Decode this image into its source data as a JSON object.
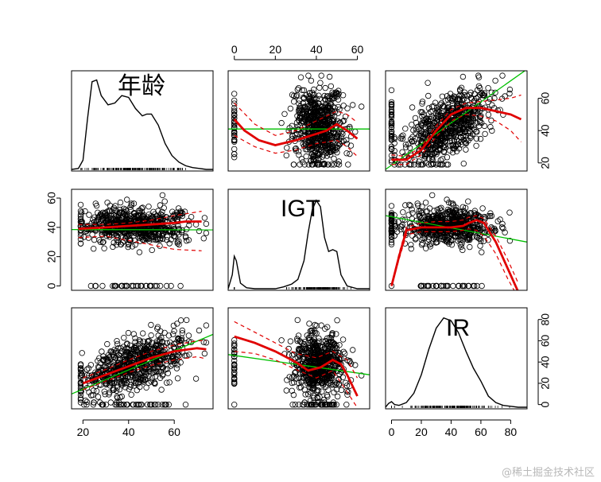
{
  "chart_data": {
    "type": "scatter",
    "kind": "scatterplot-matrix",
    "variables": [
      "年龄",
      "IGT",
      "IR"
    ],
    "diagonal": "density",
    "axis_ticks": {
      "年龄": [
        20,
        40,
        60
      ],
      "IGT": [
        0,
        20,
        40,
        60
      ],
      "IR": [
        0,
        20,
        40,
        60,
        80
      ]
    },
    "axis_ranges": {
      "年龄": [
        15,
        77
      ],
      "IGT": [
        -3,
        66
      ],
      "IR": [
        -4,
        91
      ]
    },
    "colors": {
      "points": "#000000",
      "smoother": "#e00000",
      "regression": "#00c000",
      "frame": "#000000"
    },
    "densities": {
      "年龄": {
        "x": [
          15,
          18,
          20,
          22,
          24,
          26,
          28,
          31,
          34,
          37,
          40,
          43,
          46,
          48,
          50,
          53,
          56,
          59,
          62,
          65,
          68,
          71,
          74,
          77
        ],
        "y": [
          0.0,
          0.01,
          0.1,
          0.55,
          0.95,
          0.97,
          0.8,
          0.7,
          0.72,
          0.8,
          0.78,
          0.66,
          0.58,
          0.6,
          0.6,
          0.48,
          0.28,
          0.15,
          0.08,
          0.04,
          0.02,
          0.01,
          0.0,
          0.0
        ]
      },
      "IGT": {
        "x": [
          -3,
          -1,
          0,
          1,
          3,
          6,
          10,
          15,
          20,
          24,
          28,
          31,
          34,
          36,
          38,
          40,
          42,
          44,
          46,
          48,
          50,
          52,
          55,
          60,
          66
        ],
        "y": [
          0.0,
          0.15,
          0.35,
          0.3,
          0.06,
          0.01,
          0.0,
          0.0,
          0.0,
          0.02,
          0.05,
          0.1,
          0.3,
          0.6,
          0.85,
          0.95,
          0.88,
          0.55,
          0.4,
          0.42,
          0.4,
          0.15,
          0.03,
          0.0,
          0.0
        ]
      },
      "IR": {
        "x": [
          -4,
          -2,
          0,
          2,
          5,
          10,
          15,
          20,
          25,
          30,
          35,
          40,
          45,
          50,
          55,
          60,
          65,
          70,
          75,
          80,
          85,
          91
        ],
        "y": [
          0.0,
          0.04,
          0.06,
          0.03,
          0.02,
          0.05,
          0.15,
          0.35,
          0.62,
          0.85,
          0.96,
          0.93,
          0.8,
          0.6,
          0.42,
          0.28,
          0.12,
          0.05,
          0.02,
          0.01,
          0.0,
          0.0
        ]
      }
    },
    "panels": [
      {
        "row": "IGT",
        "col": "年龄",
        "smooth": {
          "x": [
            18,
            30,
            40,
            50,
            60,
            65,
            72
          ],
          "y": [
            39,
            40,
            41,
            42,
            43,
            44,
            44
          ]
        },
        "upper": {
          "x": [
            18,
            30,
            40,
            50,
            60,
            72
          ],
          "y": [
            42,
            42,
            43,
            45,
            48,
            51
          ]
        },
        "lower": {
          "x": [
            18,
            30,
            40,
            50,
            60,
            72
          ],
          "y": [
            33,
            34,
            31,
            28,
            25,
            24
          ]
        },
        "fit": {
          "x": [
            15,
            77
          ],
          "y": [
            38.5,
            38.3
          ]
        }
      },
      {
        "row": "IR",
        "col": "年龄",
        "smooth": {
          "x": [
            20,
            30,
            40,
            50,
            60,
            70,
            74
          ],
          "y": [
            20,
            28,
            36,
            44,
            50,
            53,
            52
          ]
        },
        "upper": {
          "x": [
            20,
            30,
            40,
            50,
            60,
            70,
            74
          ],
          "y": [
            25,
            33,
            42,
            50,
            56,
            60,
            60
          ]
        },
        "lower": {
          "x": [
            20,
            30,
            40,
            50,
            60,
            70,
            74
          ],
          "y": [
            14,
            22,
            30,
            37,
            42,
            45,
            43
          ]
        },
        "fit": {
          "x": [
            15,
            77
          ],
          "y": [
            10,
            66
          ]
        }
      },
      {
        "row": "年龄",
        "col": "IGT",
        "smooth": {
          "x": [
            0,
            5,
            12,
            20,
            30,
            40,
            45,
            50,
            55,
            60
          ],
          "y": [
            47,
            40,
            34,
            31,
            34,
            38,
            40,
            44,
            40,
            35
          ]
        },
        "upper": {
          "x": [
            0,
            10,
            20,
            30,
            40,
            50,
            55,
            60
          ],
          "y": [
            57,
            44,
            37,
            40,
            46,
            52,
            50,
            45
          ]
        },
        "lower": {
          "x": [
            0,
            10,
            20,
            30,
            40,
            50,
            55,
            60
          ],
          "y": [
            37,
            30,
            26,
            28,
            32,
            34,
            30,
            24
          ]
        },
        "fit": {
          "x": [
            -3,
            66
          ],
          "y": [
            41,
            41
          ]
        }
      },
      {
        "row": "IR",
        "col": "IGT",
        "smooth": {
          "x": [
            0,
            10,
            20,
            30,
            36,
            42,
            48,
            52,
            55,
            60
          ],
          "y": [
            64,
            58,
            50,
            40,
            32,
            35,
            42,
            38,
            28,
            8
          ]
        },
        "upper": {
          "x": [
            0,
            10,
            20,
            30,
            40,
            48,
            55,
            60
          ],
          "y": [
            78,
            68,
            58,
            48,
            44,
            50,
            42,
            25
          ]
        },
        "lower": {
          "x": [
            0,
            10,
            20,
            30,
            40,
            48,
            55,
            60
          ],
          "y": [
            50,
            48,
            42,
            33,
            25,
            32,
            12,
            -3
          ]
        },
        "fit": {
          "x": [
            -3,
            66
          ],
          "y": [
            47,
            28
          ]
        }
      },
      {
        "row": "年龄",
        "col": "IR",
        "smooth": {
          "x": [
            0,
            10,
            20,
            30,
            40,
            50,
            60,
            70,
            80,
            87
          ],
          "y": [
            22,
            22,
            28,
            40,
            50,
            54,
            54,
            52,
            50,
            47
          ]
        },
        "upper": {
          "x": [
            0,
            10,
            20,
            30,
            40,
            50,
            60,
            70,
            80,
            87
          ],
          "y": [
            25,
            24,
            30,
            43,
            53,
            57,
            58,
            59,
            60,
            62
          ]
        },
        "lower": {
          "x": [
            0,
            10,
            20,
            30,
            40,
            50,
            60,
            70,
            80,
            87
          ],
          "y": [
            19,
            19,
            25,
            36,
            46,
            50,
            49,
            46,
            40,
            33
          ]
        },
        "fit": {
          "x": [
            -4,
            91
          ],
          "y": [
            16,
            78
          ]
        }
      },
      {
        "row": "IGT",
        "col": "IR",
        "smooth": {
          "x": [
            0,
            5,
            10,
            20,
            30,
            40,
            48,
            52,
            57,
            62,
            70,
            78,
            85
          ],
          "y": [
            0,
            20,
            38,
            40,
            40,
            40,
            41,
            43,
            45,
            43,
            30,
            12,
            -4
          ]
        },
        "upper": {
          "x": [
            0,
            5,
            10,
            20,
            30,
            40,
            48,
            52,
            57,
            62,
            70,
            78,
            85
          ],
          "y": [
            0,
            22,
            40,
            43,
            44,
            44,
            45,
            47,
            48,
            46,
            34,
            18,
            2
          ]
        },
        "lower": {
          "x": [
            0,
            5,
            10,
            20,
            30,
            40,
            48,
            52,
            57,
            62,
            70,
            78,
            85
          ],
          "y": [
            0,
            18,
            35,
            37,
            37,
            37,
            38,
            39,
            38,
            34,
            22,
            5,
            -8
          ]
        },
        "fit": {
          "x": [
            -4,
            91
          ],
          "y": [
            48,
            30
          ]
        }
      }
    ]
  },
  "watermark": "@稀土掘金技术社区"
}
